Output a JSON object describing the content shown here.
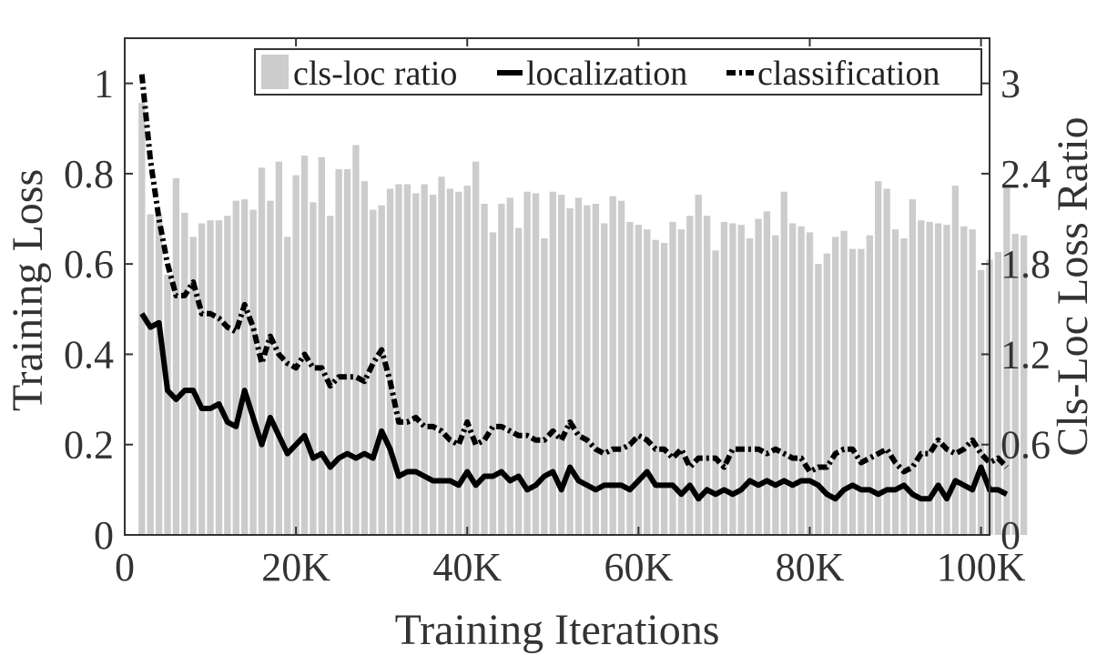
{
  "chart_data": {
    "type": "bar+line",
    "xlabel": "Training Iterations",
    "ylabel_left": "Training Loss",
    "ylabel_right": "Cls-Loc Loss Ratio",
    "xlim": [
      0,
      101000
    ],
    "ylim_left": [
      0,
      1.1
    ],
    "ylim_right": [
      0,
      3.3
    ],
    "x_ticks": [
      0,
      20000,
      40000,
      60000,
      80000,
      100000
    ],
    "x_tick_labels": [
      "0",
      "20K",
      "40K",
      "60K",
      "80K",
      "100K"
    ],
    "y_left_ticks": [
      0,
      0.2,
      0.4,
      0.6,
      0.8,
      1
    ],
    "y_left_tick_labels": [
      "0",
      "0.2",
      "0.4",
      "0.6",
      "0.8",
      "1"
    ],
    "y_right_ticks": [
      0,
      0.6,
      1.2,
      1.8,
      2.4,
      3
    ],
    "y_right_tick_labels": [
      "0",
      "0.6",
      "1.2",
      "1.8",
      "2.4",
      "3"
    ],
    "grid": false,
    "legend_position": "top-right",
    "colors": {
      "bar": "#cccccc",
      "line": "#000000",
      "text": "#333333"
    },
    "series": [
      {
        "name": "cls-loc ratio",
        "kind": "bar",
        "axis": "right",
        "x_start": 2000,
        "x_step": 1000,
        "values": [
          2.87,
          2.13,
          2.13,
          1.73,
          2.37,
          2.14,
          1.98,
          2.07,
          2.09,
          2.09,
          2.12,
          2.22,
          2.23,
          2.16,
          2.44,
          2.22,
          2.48,
          1.98,
          2.39,
          2.52,
          2.21,
          2.51,
          2.12,
          2.43,
          2.43,
          2.59,
          2.35,
          2.16,
          2.19,
          2.3,
          2.33,
          2.33,
          2.27,
          2.33,
          2.26,
          2.38,
          2.3,
          2.28,
          2.32,
          2.48,
          2.2,
          2.01,
          2.2,
          2.24,
          2.04,
          2.28,
          2.27,
          1.97,
          2.28,
          2.26,
          2.17,
          2.24,
          2.19,
          2.2,
          2.07,
          2.25,
          2.22,
          2.08,
          2.06,
          2.03,
          1.96,
          1.94,
          2.08,
          2.03,
          2.12,
          2.26,
          2.12,
          1.89,
          2.08,
          2.07,
          2.06,
          1.97,
          2.1,
          2.15,
          1.99,
          2.28,
          2.07,
          2.05,
          2.01,
          1.8,
          1.87,
          1.98,
          2.02,
          1.9,
          1.9,
          1.99,
          2.35,
          2.3,
          2.03,
          1.97,
          2.23,
          2.09,
          2.08,
          2.07,
          2.06,
          2.32,
          2.05,
          2.03,
          1.76,
          1.83,
          1.88,
          2.31,
          2.0,
          1.99
        ]
      },
      {
        "name": "localization",
        "kind": "line",
        "style": "solid",
        "axis": "left",
        "x_start": 2000,
        "x_step": 1000,
        "values": [
          0.49,
          0.46,
          0.47,
          0.32,
          0.3,
          0.32,
          0.32,
          0.28,
          0.28,
          0.29,
          0.25,
          0.24,
          0.32,
          0.26,
          0.2,
          0.26,
          0.22,
          0.18,
          0.2,
          0.22,
          0.17,
          0.18,
          0.15,
          0.17,
          0.18,
          0.17,
          0.18,
          0.17,
          0.23,
          0.19,
          0.13,
          0.14,
          0.14,
          0.13,
          0.12,
          0.12,
          0.12,
          0.11,
          0.14,
          0.11,
          0.13,
          0.13,
          0.14,
          0.12,
          0.13,
          0.1,
          0.11,
          0.13,
          0.14,
          0.1,
          0.15,
          0.12,
          0.11,
          0.1,
          0.11,
          0.11,
          0.11,
          0.1,
          0.12,
          0.14,
          0.11,
          0.11,
          0.11,
          0.09,
          0.11,
          0.08,
          0.1,
          0.09,
          0.1,
          0.09,
          0.1,
          0.12,
          0.11,
          0.12,
          0.11,
          0.12,
          0.11,
          0.12,
          0.12,
          0.11,
          0.09,
          0.08,
          0.1,
          0.11,
          0.1,
          0.1,
          0.09,
          0.1,
          0.1,
          0.11,
          0.09,
          0.08,
          0.08,
          0.11,
          0.08,
          0.12,
          0.11,
          0.1,
          0.15,
          0.1,
          0.1,
          0.09
        ]
      },
      {
        "name": "classification",
        "kind": "line",
        "style": "dash-dot",
        "axis": "left",
        "x_start": 2000,
        "x_step": 1000,
        "values": [
          1.02,
          0.83,
          0.7,
          0.6,
          0.53,
          0.53,
          0.56,
          0.49,
          0.49,
          0.48,
          0.46,
          0.45,
          0.51,
          0.46,
          0.38,
          0.44,
          0.4,
          0.38,
          0.37,
          0.4,
          0.37,
          0.37,
          0.33,
          0.35,
          0.35,
          0.35,
          0.34,
          0.38,
          0.41,
          0.34,
          0.25,
          0.25,
          0.26,
          0.24,
          0.24,
          0.23,
          0.21,
          0.2,
          0.25,
          0.2,
          0.21,
          0.24,
          0.24,
          0.23,
          0.22,
          0.22,
          0.21,
          0.21,
          0.23,
          0.21,
          0.25,
          0.22,
          0.21,
          0.19,
          0.18,
          0.19,
          0.19,
          0.2,
          0.22,
          0.21,
          0.19,
          0.19,
          0.17,
          0.19,
          0.15,
          0.17,
          0.17,
          0.17,
          0.15,
          0.19,
          0.19,
          0.19,
          0.19,
          0.18,
          0.19,
          0.18,
          0.17,
          0.17,
          0.14,
          0.15,
          0.15,
          0.18,
          0.19,
          0.19,
          0.16,
          0.17,
          0.18,
          0.19,
          0.16,
          0.14,
          0.15,
          0.18,
          0.18,
          0.21,
          0.19,
          0.18,
          0.19,
          0.21,
          0.18,
          0.16,
          0.17,
          0.15
        ]
      }
    ]
  }
}
